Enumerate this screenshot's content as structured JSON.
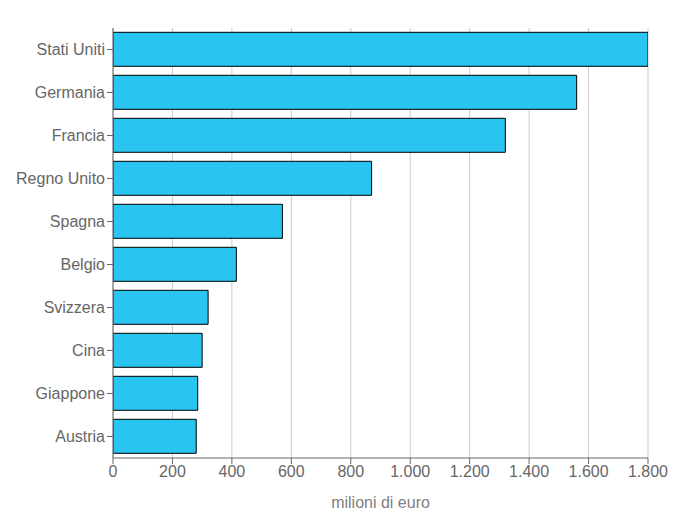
{
  "chart_data": {
    "type": "bar",
    "orientation": "horizontal",
    "categories": [
      "Austria",
      "Giappone",
      "Cina",
      "Svizzera",
      "Belgio",
      "Spagna",
      "Regno Unito",
      "Francia",
      "Germania",
      "Stati Uniti"
    ],
    "values": [
      280,
      285,
      300,
      320,
      415,
      570,
      870,
      1320,
      1560,
      1800
    ],
    "color": "#29C4F0",
    "xlabel": "milioni di euro",
    "xlim": [
      0,
      1800
    ],
    "xticks": [
      0,
      200,
      400,
      600,
      800,
      {
        "value": 1000,
        "label": "1.000"
      },
      {
        "value": 1200,
        "label": "1.200"
      },
      {
        "value": 1400,
        "label": "1.400"
      },
      {
        "value": 1600,
        "label": "1.600"
      },
      {
        "value": 1800,
        "label": "1.800"
      }
    ],
    "grid": true
  }
}
